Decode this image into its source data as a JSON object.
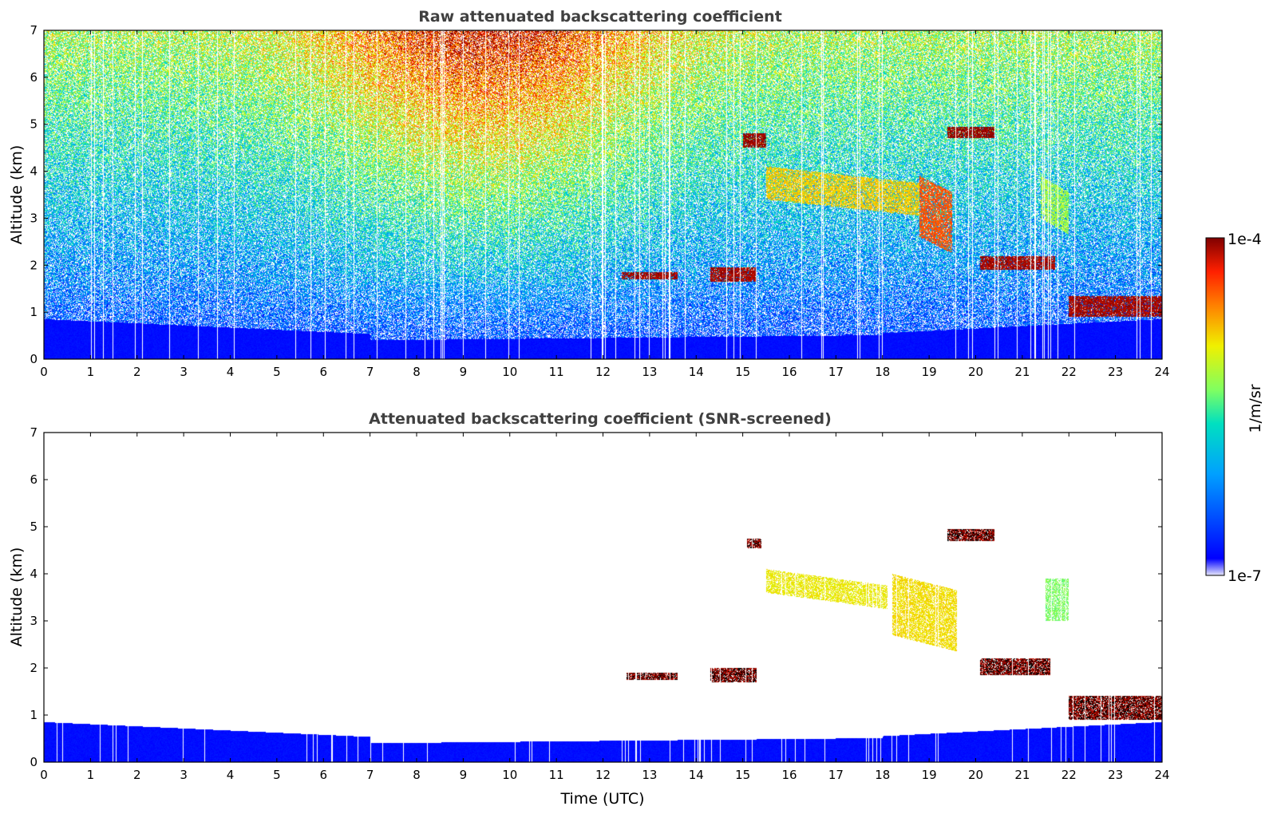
{
  "chart_data": [
    {
      "type": "heatmap",
      "title": "Raw attenuated backscattering coefficient",
      "xlabel": "",
      "ylabel": "Altitude (km)",
      "xlim": [
        0,
        24
      ],
      "ylim": [
        0,
        7
      ],
      "xticks": [
        "0",
        "1",
        "2",
        "3",
        "4",
        "5",
        "6",
        "7",
        "8",
        "9",
        "10",
        "11",
        "12",
        "13",
        "14",
        "15",
        "16",
        "17",
        "18",
        "19",
        "20",
        "21",
        "22",
        "23",
        "24"
      ],
      "yticks": [
        "0",
        "1",
        "2",
        "3",
        "4",
        "5",
        "6",
        "7"
      ],
      "features": [
        {
          "type": "boundary_layer",
          "t0": 0,
          "t1": 24,
          "top_km": 0.8,
          "level": 0.05
        },
        {
          "type": "aerosol_layer",
          "t0": 15.5,
          "t1": 18.8,
          "alt_km": [
            3.4,
            4.1
          ],
          "level": 0.72
        },
        {
          "type": "cloud",
          "t0": 15.0,
          "t1": 15.5,
          "alt_km": [
            4.5,
            4.8
          ],
          "level": 0.98
        },
        {
          "type": "cloud",
          "t0": 19.4,
          "t1": 20.4,
          "alt_km": [
            4.7,
            4.95
          ],
          "level": 0.98
        },
        {
          "type": "cloud",
          "t0": 12.4,
          "t1": 13.6,
          "alt_km": [
            1.7,
            1.85
          ],
          "level": 0.97
        },
        {
          "type": "cloud",
          "t0": 14.3,
          "t1": 15.3,
          "alt_km": [
            1.65,
            1.95
          ],
          "level": 0.97
        },
        {
          "type": "cloud",
          "t0": 20.1,
          "t1": 21.7,
          "alt_km": [
            1.9,
            2.2
          ],
          "level": 0.97
        },
        {
          "type": "cloud",
          "t0": 22.0,
          "t1": 24.0,
          "alt_km": [
            0.9,
            1.35
          ],
          "level": 0.97
        },
        {
          "type": "aerosol_layer",
          "t0": 18.8,
          "t1": 19.5,
          "alt_km": [
            2.6,
            3.9
          ],
          "level": 0.85
        },
        {
          "type": "aerosol_layer",
          "t0": 21.4,
          "t1": 22.0,
          "alt_km": [
            3.0,
            3.9
          ],
          "level": 0.6
        }
      ]
    },
    {
      "type": "heatmap",
      "title": "Attenuated backscattering coefficient (SNR-screened)",
      "xlabel": "Time (UTC)",
      "ylabel": "Altitude (km)",
      "xlim": [
        0,
        24
      ],
      "ylim": [
        0,
        7
      ],
      "xticks": [
        "0",
        "1",
        "2",
        "3",
        "4",
        "5",
        "6",
        "7",
        "8",
        "9",
        "10",
        "11",
        "12",
        "13",
        "14",
        "15",
        "16",
        "17",
        "18",
        "19",
        "20",
        "21",
        "22",
        "23",
        "24"
      ],
      "yticks": [
        "0",
        "1",
        "2",
        "3",
        "4",
        "5",
        "6",
        "7"
      ],
      "features": [
        {
          "type": "boundary_layer",
          "t0": 0,
          "t1": 24,
          "top_km": 0.8,
          "level": 0.05
        },
        {
          "type": "aerosol_layer",
          "t0": 15.5,
          "t1": 18.1,
          "alt_km": [
            3.6,
            4.1
          ],
          "level": 0.68
        },
        {
          "type": "aerosol_layer",
          "t0": 18.2,
          "t1": 19.6,
          "alt_km": [
            2.7,
            4.0
          ],
          "level": 0.7
        },
        {
          "type": "aerosol_layer",
          "t0": 21.5,
          "t1": 22.0,
          "alt_km": [
            3.0,
            3.9
          ],
          "level": 0.55
        },
        {
          "type": "cloud",
          "t0": 15.1,
          "t1": 15.4,
          "alt_km": [
            4.55,
            4.75
          ],
          "level": 0.98
        },
        {
          "type": "cloud",
          "t0": 19.4,
          "t1": 20.4,
          "alt_km": [
            4.7,
            4.95
          ],
          "level": 0.98
        },
        {
          "type": "cloud",
          "t0": 12.5,
          "t1": 13.6,
          "alt_km": [
            1.75,
            1.9
          ],
          "level": 0.98
        },
        {
          "type": "cloud",
          "t0": 14.3,
          "t1": 15.3,
          "alt_km": [
            1.7,
            2.0
          ],
          "level": 0.98
        },
        {
          "type": "cloud",
          "t0": 20.1,
          "t1": 21.6,
          "alt_km": [
            1.85,
            2.2
          ],
          "level": 0.98
        },
        {
          "type": "cloud",
          "t0": 22.0,
          "t1": 24.0,
          "alt_km": [
            0.9,
            1.4
          ],
          "level": 0.98
        }
      ]
    }
  ],
  "colorbar": {
    "label": "1/m/sr",
    "max_label": "1e-4",
    "min_label": "1e-7",
    "scale": "log",
    "range": [
      1e-07,
      0.0001
    ],
    "colormap": "jet"
  }
}
